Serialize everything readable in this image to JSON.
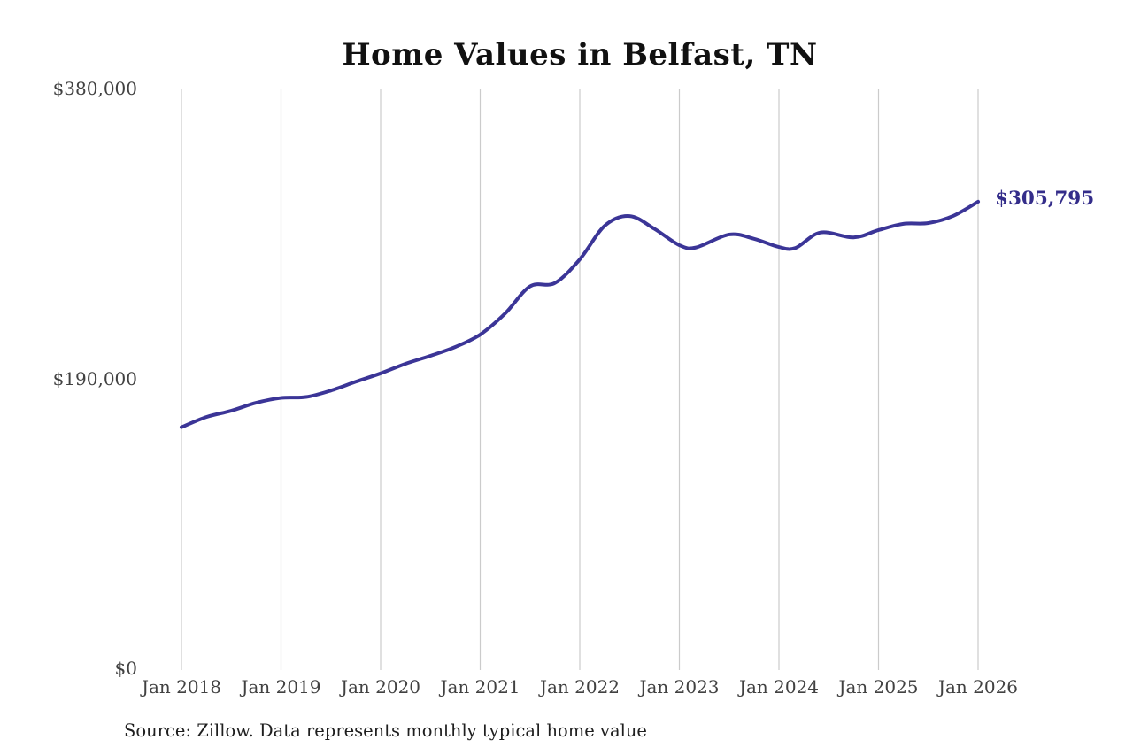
{
  "title": "Home Values in Belfast, TN",
  "source_note": "Source: Zillow. Data represents monthly typical home value",
  "colors": {
    "line": "#3b3597",
    "latest_label": "#342d8a",
    "grid": "#cbcbcb",
    "axis_text": "#414141",
    "title_text": "#111111",
    "source_text": "#1f1f1f",
    "background": "#ffffff"
  },
  "chart_data": {
    "type": "line",
    "title": "Home Values in Belfast, TN",
    "series_name": "Monthly typical home value",
    "unit": "USD",
    "x_ticks": [
      "Jan 2018",
      "Jan 2019",
      "Jan 2020",
      "Jan 2021",
      "Jan 2022",
      "Jan 2023",
      "Jan 2024",
      "Jan 2025",
      "Jan 2026"
    ],
    "y_ticks": [
      {
        "label": "$0",
        "value": 0
      },
      {
        "label": "$190,000",
        "value": 190000
      },
      {
        "label": "$380,000",
        "value": 380000
      }
    ],
    "ylim": [
      0,
      380000
    ],
    "xlim": [
      "2018-01",
      "2026-01"
    ],
    "grid": "vertical",
    "legend": "none",
    "last_value_label": "$305,795",
    "points": [
      {
        "date": "2018-01",
        "value": 158000
      },
      {
        "date": "2018-04",
        "value": 164700
      },
      {
        "date": "2018-07",
        "value": 168800
      },
      {
        "date": "2018-10",
        "value": 174000
      },
      {
        "date": "2019-01",
        "value": 177200
      },
      {
        "date": "2019-04",
        "value": 177800
      },
      {
        "date": "2019-07",
        "value": 182000
      },
      {
        "date": "2019-10",
        "value": 187800
      },
      {
        "date": "2020-01",
        "value": 193300
      },
      {
        "date": "2020-04",
        "value": 199600
      },
      {
        "date": "2020-07",
        "value": 204800
      },
      {
        "date": "2020-10",
        "value": 210600
      },
      {
        "date": "2021-01",
        "value": 218700
      },
      {
        "date": "2021-04",
        "value": 232500
      },
      {
        "date": "2021-07",
        "value": 250300
      },
      {
        "date": "2021-10",
        "value": 252500
      },
      {
        "date": "2022-01",
        "value": 268000
      },
      {
        "date": "2022-04",
        "value": 290000
      },
      {
        "date": "2022-07",
        "value": 296400
      },
      {
        "date": "2022-10",
        "value": 288000
      },
      {
        "date": "2023-01",
        "value": 277300
      },
      {
        "date": "2023-03",
        "value": 275800
      },
      {
        "date": "2023-07",
        "value": 284300
      },
      {
        "date": "2023-10",
        "value": 281500
      },
      {
        "date": "2024-01",
        "value": 276100
      },
      {
        "date": "2024-03",
        "value": 275500
      },
      {
        "date": "2024-06",
        "value": 285600
      },
      {
        "date": "2024-10",
        "value": 282400
      },
      {
        "date": "2025-01",
        "value": 287200
      },
      {
        "date": "2025-04",
        "value": 291300
      },
      {
        "date": "2025-07",
        "value": 291800
      },
      {
        "date": "2025-10",
        "value": 296500
      },
      {
        "date": "2026-01",
        "value": 305795
      }
    ]
  }
}
